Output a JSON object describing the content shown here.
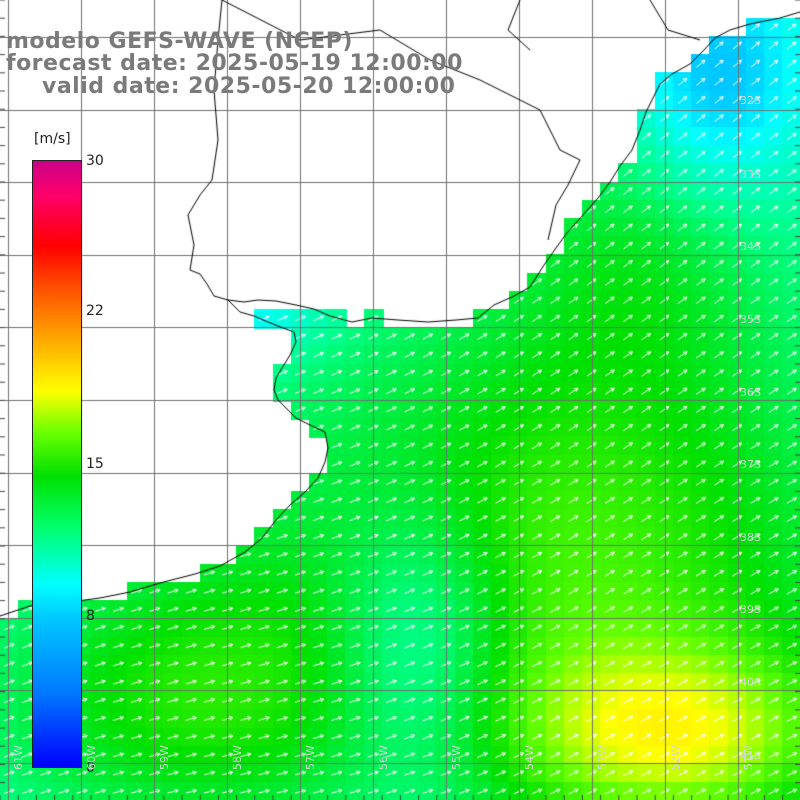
{
  "title": {
    "line1": "modelo GEFS-WAVE (NCEP)",
    "line2": "forecast date: 2025-05-19 12:00:00",
    "line3": "valid date: 2025-05-20 12:00:00"
  },
  "colorbar": {
    "unit": "[m/s]",
    "ticks": [
      "30",
      "22",
      "15",
      "8",
      "0"
    ],
    "min": 0,
    "max": 30
  },
  "lat_labels": [
    "32S",
    "33S",
    "34S",
    "35S",
    "36S",
    "37S",
    "38S",
    "39S",
    "40S",
    "41S"
  ],
  "lon_labels": [
    "61W",
    "60W",
    "59W",
    "58W",
    "57W",
    "56W",
    "55W",
    "54W",
    "53W",
    "52W",
    "51W"
  ],
  "colors": {
    "land": "#ffffff",
    "grid": "#6f6f6f",
    "coast": "#000000",
    "arrow": "#ffffff",
    "title": "#7a7a7a"
  }
}
